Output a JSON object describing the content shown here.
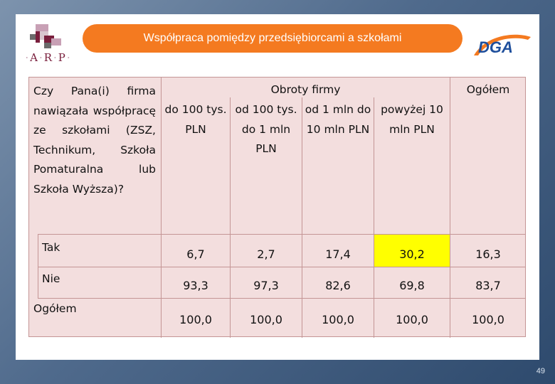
{
  "title": "Współpraca pomiędzy przedsiębiorcami a szkołami",
  "logos": {
    "arp_text": [
      "A",
      "R",
      "P"
    ],
    "dga_text": "DGA"
  },
  "table": {
    "question": "Czy Pana(i) firma nawiązała współpracę ze szkołami (ZSZ, Technikum, Szkoła Pomaturalna lub Szkoła Wyższa)?",
    "group_header": "Obroty firmy",
    "total_header": "Ogółem",
    "columns": [
      "do 100 tys. PLN",
      "od 100 tys. do 1 mln PLN",
      "od 1 mln do 10 mln PLN",
      "powyżej 10 mln PLN"
    ],
    "rows": [
      {
        "label": "Tak",
        "values": [
          "6,7",
          "2,7",
          "17,4",
          "30,2",
          "16,3"
        ]
      },
      {
        "label": "Nie",
        "values": [
          "93,3",
          "97,3",
          "82,6",
          "69,8",
          "83,7"
        ]
      },
      {
        "label": "Ogółem",
        "values": [
          "100,0",
          "100,0",
          "100,0",
          "100,0",
          "100,0"
        ]
      }
    ],
    "highlight_color": "#ffff00"
  },
  "page_number": "49"
}
